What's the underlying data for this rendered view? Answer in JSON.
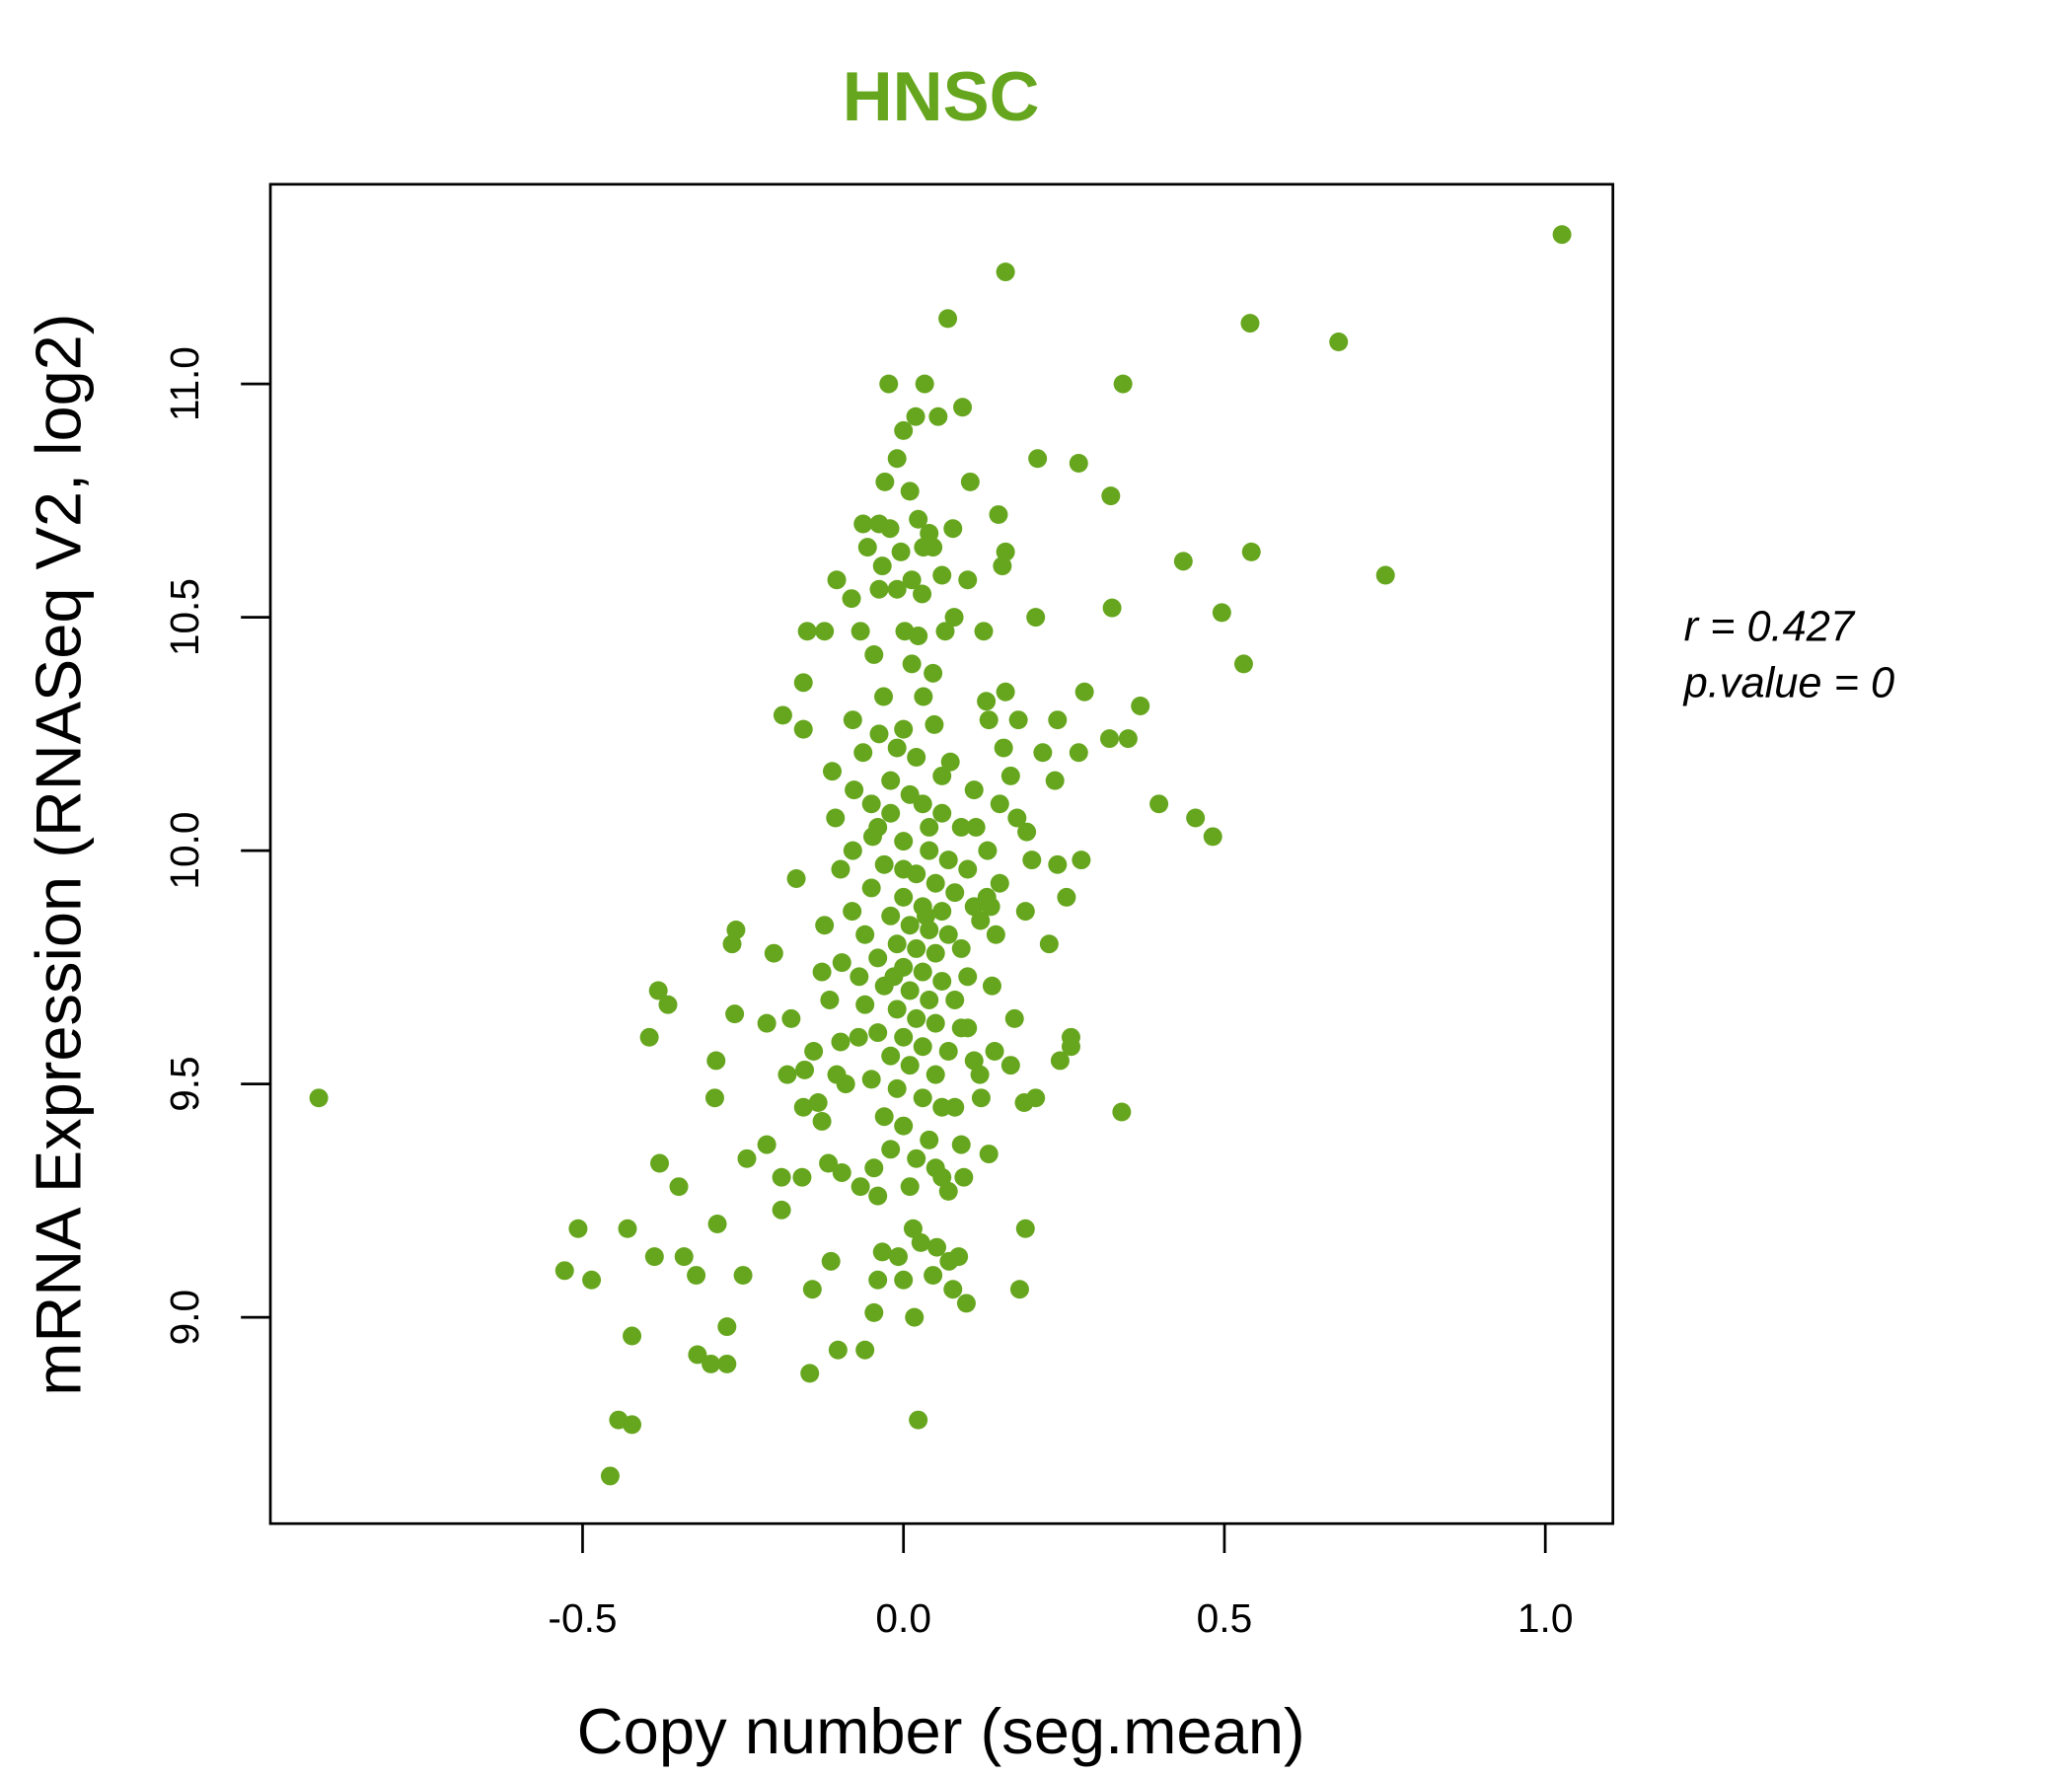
{
  "chart_data": {
    "type": "scatter",
    "title": "HNSC",
    "xlabel": "Copy number (seg.mean)",
    "ylabel": "mRNA Expression (RNASeq V2, log2)",
    "xlim": [
      -0.99,
      1.1
    ],
    "ylim": [
      8.56,
      11.43
    ],
    "xticks": [
      -0.5,
      0.0,
      0.5,
      1.0
    ],
    "xtick_labels": [
      "-0.5",
      "0.0",
      "0.5",
      "1.0"
    ],
    "yticks": [
      9.0,
      9.5,
      10.0,
      10.5,
      11.0
    ],
    "ytick_labels": [
      "9.0",
      "9.5",
      "10.0",
      "10.5",
      "11.0"
    ],
    "grid": false,
    "color": "#66a61e",
    "stats": {
      "r_label": "r = 0.427",
      "p_label": "p.value = 0"
    },
    "points": [
      [
        1.026,
        11.32
      ],
      [
        0.159,
        11.24
      ],
      [
        0.069,
        11.14
      ],
      [
        0.54,
        11.13
      ],
      [
        0.678,
        11.09
      ],
      [
        -0.023,
        11.0
      ],
      [
        0.033,
        11.0
      ],
      [
        0.342,
        11.0
      ],
      [
        0.092,
        10.95
      ],
      [
        0.019,
        10.93
      ],
      [
        0.054,
        10.93
      ],
      [
        0.0,
        10.9
      ],
      [
        0.209,
        10.84
      ],
      [
        0.273,
        10.83
      ],
      [
        -0.01,
        10.84
      ],
      [
        0.104,
        10.79
      ],
      [
        -0.029,
        10.79
      ],
      [
        0.01,
        10.77
      ],
      [
        0.323,
        10.76
      ],
      [
        0.148,
        10.72
      ],
      [
        0.023,
        10.71
      ],
      [
        -0.063,
        10.7
      ],
      [
        -0.038,
        10.7
      ],
      [
        -0.021,
        10.69
      ],
      [
        0.077,
        10.69
      ],
      [
        0.04,
        10.68
      ],
      [
        0.046,
        10.65
      ],
      [
        0.159,
        10.64
      ],
      [
        0.436,
        10.62
      ],
      [
        0.542,
        10.64
      ],
      [
        0.751,
        10.59
      ],
      [
        0.154,
        10.61
      ],
      [
        -0.056,
        10.65
      ],
      [
        -0.004,
        10.64
      ],
      [
        0.031,
        10.65
      ],
      [
        -0.033,
        10.61
      ],
      [
        0.06,
        10.59
      ],
      [
        0.1,
        10.58
      ],
      [
        -0.104,
        10.58
      ],
      [
        0.013,
        10.58
      ],
      [
        -0.038,
        10.56
      ],
      [
        -0.01,
        10.56
      ],
      [
        0.029,
        10.55
      ],
      [
        -0.081,
        10.54
      ],
      [
        0.079,
        10.5
      ],
      [
        0.206,
        10.5
      ],
      [
        0.496,
        10.51
      ],
      [
        0.325,
        10.52
      ],
      [
        -0.15,
        10.47
      ],
      [
        -0.123,
        10.47
      ],
      [
        0.125,
        10.47
      ],
      [
        0.065,
        10.47
      ],
      [
        0.002,
        10.47
      ],
      [
        -0.067,
        10.47
      ],
      [
        0.023,
        10.46
      ],
      [
        -0.046,
        10.42
      ],
      [
        0.53,
        10.4
      ],
      [
        0.013,
        10.4
      ],
      [
        0.046,
        10.38
      ],
      [
        -0.156,
        10.36
      ],
      [
        -0.031,
        10.33
      ],
      [
        0.031,
        10.33
      ],
      [
        0.159,
        10.34
      ],
      [
        0.129,
        10.32
      ],
      [
        0.282,
        10.34
      ],
      [
        0.369,
        10.31
      ],
      [
        -0.188,
        10.29
      ],
      [
        -0.079,
        10.28
      ],
      [
        0.133,
        10.28
      ],
      [
        0.179,
        10.28
      ],
      [
        0.24,
        10.28
      ],
      [
        -0.156,
        10.26
      ],
      [
        0.321,
        10.24
      ],
      [
        0.35,
        10.24
      ],
      [
        -0.038,
        10.25
      ],
      [
        0.0,
        10.26
      ],
      [
        0.048,
        10.27
      ],
      [
        -0.063,
        10.21
      ],
      [
        0.156,
        10.22
      ],
      [
        0.217,
        10.21
      ],
      [
        0.273,
        10.21
      ],
      [
        0.073,
        10.19
      ],
      [
        -0.111,
        10.17
      ],
      [
        0.167,
        10.16
      ],
      [
        0.236,
        10.15
      ],
      [
        -0.077,
        10.13
      ],
      [
        0.398,
        10.1
      ],
      [
        0.455,
        10.07
      ],
      [
        0.482,
        10.03
      ],
      [
        -0.106,
        10.07
      ],
      [
        0.15,
        10.1
      ],
      [
        0.177,
        10.07
      ],
      [
        0.113,
        10.05
      ],
      [
        0.192,
        10.04
      ],
      [
        -0.048,
        10.03
      ],
      [
        -0.079,
        10.0
      ],
      [
        0.131,
        10.0
      ],
      [
        0.277,
        9.98
      ],
      [
        0.2,
        9.98
      ],
      [
        0.24,
        9.97
      ],
      [
        -0.167,
        9.94
      ],
      [
        -0.098,
        9.96
      ],
      [
        0.15,
        9.93
      ],
      [
        0.254,
        9.9
      ],
      [
        0.19,
        9.87
      ],
      [
        0.136,
        9.88
      ],
      [
        -0.123,
        9.84
      ],
      [
        -0.261,
        9.83
      ],
      [
        -0.267,
        9.8
      ],
      [
        -0.202,
        9.78
      ],
      [
        0.144,
        9.82
      ],
      [
        0.227,
        9.8
      ],
      [
        -0.096,
        9.76
      ],
      [
        -0.127,
        9.74
      ],
      [
        -0.069,
        9.73
      ],
      [
        -0.382,
        9.7
      ],
      [
        -0.367,
        9.67
      ],
      [
        0.138,
        9.71
      ],
      [
        -0.115,
        9.68
      ],
      [
        -0.263,
        9.65
      ],
      [
        -0.213,
        9.63
      ],
      [
        -0.175,
        9.64
      ],
      [
        0.173,
        9.64
      ],
      [
        -0.396,
        9.6
      ],
      [
        0.261,
        9.6
      ],
      [
        0.261,
        9.58
      ],
      [
        -0.14,
        9.57
      ],
      [
        -0.098,
        9.59
      ],
      [
        -0.292,
        9.55
      ],
      [
        -0.181,
        9.52
      ],
      [
        0.142,
        9.57
      ],
      [
        0.167,
        9.54
      ],
      [
        0.244,
        9.55
      ],
      [
        -0.154,
        9.53
      ],
      [
        -0.104,
        9.52
      ],
      [
        0.119,
        9.52
      ],
      [
        -0.294,
        9.47
      ],
      [
        -0.156,
        9.45
      ],
      [
        -0.133,
        9.46
      ],
      [
        -0.127,
        9.42
      ],
      [
        0.121,
        9.47
      ],
      [
        0.206,
        9.47
      ],
      [
        0.188,
        9.46
      ],
      [
        0.34,
        9.44
      ],
      [
        -0.213,
        9.37
      ],
      [
        -0.244,
        9.34
      ],
      [
        0.133,
        9.35
      ],
      [
        -0.117,
        9.33
      ],
      [
        -0.096,
        9.31
      ],
      [
        -0.38,
        9.33
      ],
      [
        -0.35,
        9.28
      ],
      [
        -0.19,
        9.3
      ],
      [
        -0.158,
        9.3
      ],
      [
        -0.046,
        9.32
      ],
      [
        -0.067,
        9.28
      ],
      [
        0.09,
        9.37
      ],
      [
        0.094,
        9.3
      ],
      [
        0.06,
        9.3
      ],
      [
        -0.19,
        9.23
      ],
      [
        -0.29,
        9.2
      ],
      [
        -0.507,
        9.19
      ],
      [
        -0.43,
        9.19
      ],
      [
        0.19,
        9.19
      ],
      [
        -0.388,
        9.13
      ],
      [
        -0.342,
        9.13
      ],
      [
        -0.323,
        9.09
      ],
      [
        -0.25,
        9.09
      ],
      [
        -0.528,
        9.1
      ],
      [
        -0.486,
        9.08
      ],
      [
        -0.113,
        9.12
      ],
      [
        -0.033,
        9.14
      ],
      [
        0.086,
        9.13
      ],
      [
        -0.142,
        9.06
      ],
      [
        -0.04,
        9.08
      ],
      [
        0.181,
        9.06
      ],
      [
        0.098,
        9.03
      ],
      [
        -0.046,
        9.01
      ],
      [
        0.017,
        9.0
      ],
      [
        -0.423,
        8.96
      ],
      [
        -0.275,
        8.98
      ],
      [
        -0.321,
        8.92
      ],
      [
        -0.3,
        8.9
      ],
      [
        -0.275,
        8.9
      ],
      [
        -0.102,
        8.93
      ],
      [
        -0.06,
        8.93
      ],
      [
        -0.146,
        8.88
      ],
      [
        -0.444,
        8.78
      ],
      [
        -0.423,
        8.77
      ],
      [
        0.023,
        8.78
      ],
      [
        -0.457,
        8.66
      ],
      [
        -0.911,
        9.47
      ],
      [
        0.015,
        9.19
      ],
      [
        0.027,
        9.16
      ],
      [
        -0.008,
        9.13
      ],
      [
        0.052,
        9.15
      ],
      [
        0.071,
        9.12
      ],
      [
        0.046,
        9.09
      ],
      [
        0.0,
        9.08
      ],
      [
        0.077,
        9.06
      ],
      [
        -0.02,
        10.15
      ],
      [
        0.01,
        10.12
      ],
      [
        0.03,
        10.1
      ],
      [
        0.06,
        10.08
      ],
      [
        0.09,
        10.05
      ],
      [
        -0.04,
        10.05
      ],
      [
        0.0,
        10.02
      ],
      [
        0.04,
        10.0
      ],
      [
        0.07,
        9.98
      ],
      [
        0.1,
        9.96
      ],
      [
        -0.03,
        9.97
      ],
      [
        0.02,
        9.95
      ],
      [
        0.05,
        9.93
      ],
      [
        0.08,
        9.91
      ],
      [
        -0.05,
        9.92
      ],
      [
        0.0,
        9.9
      ],
      [
        0.03,
        9.88
      ],
      [
        0.06,
        9.87
      ],
      [
        0.11,
        9.88
      ],
      [
        -0.02,
        9.86
      ],
      [
        0.01,
        9.84
      ],
      [
        0.04,
        9.83
      ],
      [
        0.07,
        9.82
      ],
      [
        -0.06,
        9.82
      ],
      [
        -0.01,
        9.8
      ],
      [
        0.02,
        9.79
      ],
      [
        0.05,
        9.78
      ],
      [
        0.09,
        9.79
      ],
      [
        -0.04,
        9.77
      ],
      [
        0.0,
        9.75
      ],
      [
        0.03,
        9.74
      ],
      [
        0.06,
        9.72
      ],
      [
        0.1,
        9.73
      ],
      [
        -0.03,
        9.71
      ],
      [
        0.01,
        9.7
      ],
      [
        0.04,
        9.68
      ],
      [
        0.08,
        9.68
      ],
      [
        -0.06,
        9.67
      ],
      [
        -0.01,
        9.66
      ],
      [
        0.02,
        9.64
      ],
      [
        0.05,
        9.63
      ],
      [
        0.09,
        9.62
      ],
      [
        -0.04,
        9.61
      ],
      [
        0.0,
        9.6
      ],
      [
        0.03,
        9.58
      ],
      [
        0.07,
        9.57
      ],
      [
        -0.02,
        9.56
      ],
      [
        0.01,
        9.54
      ],
      [
        0.05,
        9.52
      ],
      [
        -0.05,
        9.51
      ],
      [
        -0.01,
        9.49
      ],
      [
        0.03,
        9.47
      ],
      [
        0.06,
        9.45
      ],
      [
        -0.03,
        9.43
      ],
      [
        0.0,
        9.41
      ],
      [
        0.04,
        9.38
      ],
      [
        -0.02,
        9.36
      ],
      [
        0.02,
        9.34
      ],
      [
        0.05,
        9.32
      ],
      [
        -0.04,
        9.26
      ],
      [
        0.01,
        9.28
      ],
      [
        0.07,
        9.27
      ],
      [
        -0.05,
        10.1
      ],
      [
        0.02,
        10.2
      ],
      [
        0.06,
        10.16
      ],
      [
        -0.01,
        10.22
      ],
      [
        0.11,
        10.13
      ],
      [
        0.12,
        9.85
      ],
      [
        0.13,
        9.9
      ],
      [
        0.1,
        9.62
      ],
      [
        -0.08,
        9.87
      ],
      [
        -0.07,
        9.6
      ],
      [
        -0.09,
        9.5
      ],
      [
        0.08,
        9.45
      ],
      [
        0.11,
        9.55
      ],
      [
        -0.02,
        10.08
      ],
      [
        0.04,
        10.05
      ],
      [
        0.0,
        9.96
      ],
      [
        0.035,
        9.86
      ],
      [
        -0.015,
        9.73
      ]
    ]
  }
}
